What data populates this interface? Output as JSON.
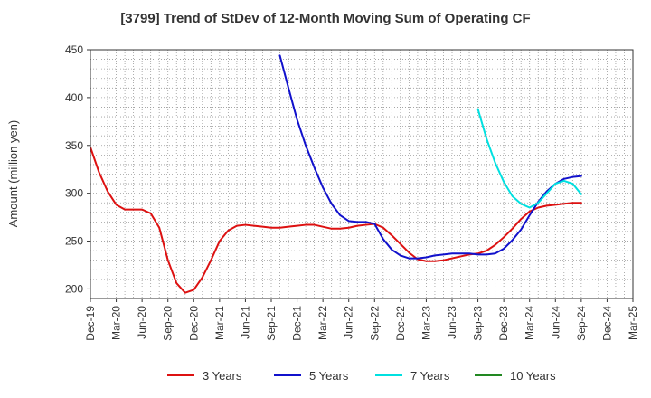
{
  "chart_data": {
    "type": "line",
    "title": "[3799]  Trend of StDev of 12-Month Moving Sum of Operating CF",
    "ylabel": "Amount (million yen)",
    "xlabel": "",
    "ylim": [
      190,
      450
    ],
    "yticks": [
      200,
      250,
      300,
      350,
      400,
      450
    ],
    "x_tick_labels": [
      "Dec-19",
      "Mar-20",
      "Jun-20",
      "Sep-20",
      "Dec-20",
      "Mar-21",
      "Jun-21",
      "Sep-21",
      "Dec-21",
      "Mar-22",
      "Jun-22",
      "Sep-22",
      "Dec-22",
      "Mar-23",
      "Jun-23",
      "Sep-23",
      "Dec-23",
      "Mar-24",
      "Jun-24",
      "Sep-24",
      "Dec-24",
      "Mar-25"
    ],
    "x_months": [
      "2019-12",
      "2020-01",
      "2020-02",
      "2020-03",
      "2020-04",
      "2020-05",
      "2020-06",
      "2020-07",
      "2020-08",
      "2020-09",
      "2020-10",
      "2020-11",
      "2020-12",
      "2021-01",
      "2021-02",
      "2021-03",
      "2021-04",
      "2021-05",
      "2021-06",
      "2021-07",
      "2021-08",
      "2021-09",
      "2021-10",
      "2021-11",
      "2021-12",
      "2022-01",
      "2022-02",
      "2022-03",
      "2022-04",
      "2022-05",
      "2022-06",
      "2022-07",
      "2022-08",
      "2022-09",
      "2022-10",
      "2022-11",
      "2022-12",
      "2023-01",
      "2023-02",
      "2023-03",
      "2023-04",
      "2023-05",
      "2023-06",
      "2023-07",
      "2023-08",
      "2023-09",
      "2023-10",
      "2023-11",
      "2023-12",
      "2024-01",
      "2024-02",
      "2024-03",
      "2024-04",
      "2024-05",
      "2024-06",
      "2024-07",
      "2024-08",
      "2024-09",
      "2024-10",
      "2024-11",
      "2024-12",
      "2025-01",
      "2025-02",
      "2025-03"
    ],
    "grid": true,
    "legend_position": "bottom",
    "series": [
      {
        "name": "3 Years",
        "color": "#dd1111",
        "values": [
          348,
          322,
          302,
          288,
          283,
          283,
          283,
          279,
          264,
          230,
          206,
          196,
          199,
          212,
          230,
          250,
          261,
          266,
          267,
          266,
          265,
          264,
          264,
          265,
          266,
          267,
          267,
          265,
          263,
          263,
          264,
          266,
          267,
          268,
          264,
          256,
          247,
          238,
          231,
          229,
          229,
          230,
          232,
          234,
          236,
          237,
          240,
          246,
          254,
          263,
          273,
          281,
          285,
          287,
          288,
          289,
          290,
          290,
          null,
          null,
          null,
          null,
          null,
          null
        ]
      },
      {
        "name": "5 Years",
        "color": "#1111cc",
        "values": [
          null,
          null,
          null,
          null,
          null,
          null,
          null,
          null,
          null,
          null,
          null,
          null,
          null,
          null,
          null,
          null,
          null,
          null,
          null,
          null,
          null,
          null,
          444,
          410,
          377,
          350,
          327,
          306,
          289,
          277,
          271,
          270,
          270,
          268,
          252,
          241,
          235,
          232,
          232,
          233,
          235,
          236,
          237,
          237,
          237,
          236,
          236,
          237,
          242,
          251,
          262,
          277,
          291,
          302,
          310,
          315,
          317,
          318,
          null,
          null,
          null,
          null,
          null,
          null
        ]
      },
      {
        "name": "7 Years",
        "color": "#00e0e0",
        "values": [
          null,
          null,
          null,
          null,
          null,
          null,
          null,
          null,
          null,
          null,
          null,
          null,
          null,
          null,
          null,
          null,
          null,
          null,
          null,
          null,
          null,
          null,
          null,
          null,
          null,
          null,
          null,
          null,
          null,
          null,
          null,
          null,
          null,
          null,
          null,
          null,
          null,
          null,
          null,
          null,
          null,
          null,
          null,
          null,
          null,
          388,
          357,
          332,
          312,
          297,
          289,
          285,
          290,
          300,
          310,
          313,
          310,
          299,
          null,
          null,
          null,
          null,
          null,
          null
        ]
      },
      {
        "name": "10 Years",
        "color": "#228822",
        "values": []
      }
    ]
  }
}
